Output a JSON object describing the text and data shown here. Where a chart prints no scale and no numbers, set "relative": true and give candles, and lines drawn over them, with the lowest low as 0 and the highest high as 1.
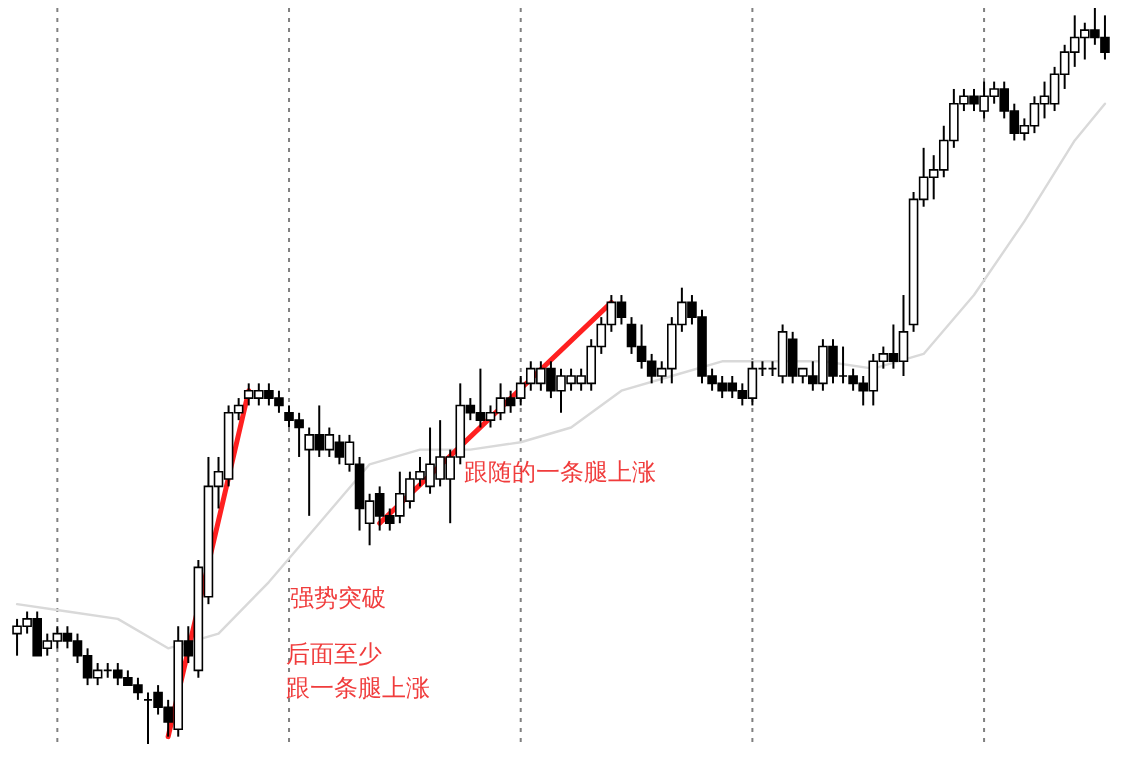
{
  "chart_data": {
    "type": "candlestick",
    "relative": true,
    "categories": [
      null,
      null,
      null,
      null,
      null,
      null,
      null,
      null,
      null,
      null,
      null,
      null,
      null,
      null,
      null,
      null,
      null,
      null,
      null,
      null,
      null,
      null,
      null,
      null,
      null,
      null,
      null,
      null,
      null,
      null,
      null,
      null,
      null,
      null,
      null,
      null,
      null,
      null,
      null,
      null,
      null,
      null,
      null,
      null,
      null,
      null,
      null,
      null,
      null,
      null,
      null,
      null,
      null,
      null,
      null,
      null,
      null,
      null,
      null,
      null,
      null,
      null,
      null,
      null,
      null,
      null,
      null,
      null,
      null,
      null,
      null,
      null,
      null,
      null,
      null,
      null,
      null,
      null,
      null,
      null,
      null,
      null,
      null,
      null,
      null,
      null,
      null,
      null,
      null,
      null,
      null,
      null,
      null,
      null,
      null,
      null,
      null,
      null,
      null,
      null,
      null,
      null,
      null,
      null,
      null,
      null,
      null,
      null,
      null
    ],
    "ohlc": [
      [
        0.15,
        0.17,
        0.12,
        0.16
      ],
      [
        0.16,
        0.18,
        0.15,
        0.17
      ],
      [
        0.17,
        0.18,
        0.12,
        0.12
      ],
      [
        0.13,
        0.15,
        0.12,
        0.14
      ],
      [
        0.14,
        0.16,
        0.13,
        0.15
      ],
      [
        0.15,
        0.16,
        0.13,
        0.14
      ],
      [
        0.14,
        0.15,
        0.11,
        0.12
      ],
      [
        0.12,
        0.13,
        0.08,
        0.09
      ],
      [
        0.09,
        0.11,
        0.08,
        0.1
      ],
      [
        0.1,
        0.11,
        0.09,
        0.1
      ],
      [
        0.1,
        0.11,
        0.08,
        0.09
      ],
      [
        0.09,
        0.1,
        0.08,
        0.08
      ],
      [
        0.08,
        0.09,
        0.06,
        0.07
      ],
      [
        0.06,
        0.07,
        0,
        0.06
      ],
      [
        0.07,
        0.08,
        0.04,
        0.05
      ],
      [
        0.05,
        0.06,
        0.01,
        0.03
      ],
      [
        0.02,
        0.16,
        0.01,
        0.14
      ],
      [
        0.14,
        0.16,
        0.11,
        0.12
      ],
      [
        0.1,
        0.25,
        0.09,
        0.24
      ],
      [
        0.2,
        0.39,
        0.19,
        0.35
      ],
      [
        0.35,
        0.39,
        0.32,
        0.37
      ],
      [
        0.36,
        0.46,
        0.35,
        0.45
      ],
      [
        0.45,
        0.47,
        0.44,
        0.46
      ],
      [
        0.47,
        0.49,
        0.46,
        0.48
      ],
      [
        0.47,
        0.49,
        0.46,
        0.48
      ],
      [
        0.48,
        0.49,
        0.46,
        0.47
      ],
      [
        0.47,
        0.48,
        0.45,
        0.46
      ],
      [
        0.45,
        0.46,
        0.43,
        0.44
      ],
      [
        0.44,
        0.45,
        0.39,
        0.43
      ],
      [
        0.4,
        0.43,
        0.31,
        0.42
      ],
      [
        0.42,
        0.46,
        0.39,
        0.4
      ],
      [
        0.4,
        0.43,
        0.39,
        0.42
      ],
      [
        0.41,
        0.42,
        0.38,
        0.39
      ],
      [
        0.38,
        0.42,
        0.37,
        0.41
      ],
      [
        0.38,
        0.39,
        0.29,
        0.32
      ],
      [
        0.3,
        0.34,
        0.27,
        0.33
      ],
      [
        0.34,
        0.35,
        0.29,
        0.31
      ],
      [
        0.31,
        0.32,
        0.29,
        0.3
      ],
      [
        0.31,
        0.37,
        0.3,
        0.34
      ],
      [
        0.33,
        0.37,
        0.32,
        0.36
      ],
      [
        0.36,
        0.39,
        0.35,
        0.37
      ],
      [
        0.35,
        0.43,
        0.34,
        0.38
      ],
      [
        0.36,
        0.44,
        0.35,
        0.39
      ],
      [
        0.36,
        0.4,
        0.3,
        0.39
      ],
      [
        0.39,
        0.49,
        0.38,
        0.46
      ],
      [
        0.46,
        0.47,
        0.44,
        0.45
      ],
      [
        0.45,
        0.51,
        0.43,
        0.44
      ],
      [
        0.44,
        0.46,
        0.43,
        0.45
      ],
      [
        0.45,
        0.49,
        0.44,
        0.47
      ],
      [
        0.47,
        0.48,
        0.45,
        0.46
      ],
      [
        0.47,
        0.5,
        0.46,
        0.49
      ],
      [
        0.49,
        0.52,
        0.48,
        0.51
      ],
      [
        0.49,
        0.52,
        0.48,
        0.51
      ],
      [
        0.51,
        0.52,
        0.47,
        0.48
      ],
      [
        0.48,
        0.51,
        0.45,
        0.5
      ],
      [
        0.49,
        0.51,
        0.48,
        0.5
      ],
      [
        0.49,
        0.51,
        0.48,
        0.5
      ],
      [
        0.49,
        0.55,
        0.48,
        0.54
      ],
      [
        0.54,
        0.58,
        0.53,
        0.57
      ],
      [
        0.57,
        0.61,
        0.56,
        0.6
      ],
      [
        0.6,
        0.61,
        0.57,
        0.58
      ],
      [
        0.57,
        0.58,
        0.53,
        0.54
      ],
      [
        0.54,
        0.57,
        0.51,
        0.52
      ],
      [
        0.52,
        0.53,
        0.49,
        0.5
      ],
      [
        0.5,
        0.52,
        0.49,
        0.51
      ],
      [
        0.51,
        0.58,
        0.49,
        0.57
      ],
      [
        0.57,
        0.62,
        0.56,
        0.6
      ],
      [
        0.6,
        0.61,
        0.57,
        0.58
      ],
      [
        0.58,
        0.59,
        0.49,
        0.5
      ],
      [
        0.5,
        0.51,
        0.48,
        0.49
      ],
      [
        0.49,
        0.5,
        0.47,
        0.48
      ],
      [
        0.49,
        0.5,
        0.47,
        0.48
      ],
      [
        0.48,
        0.49,
        0.46,
        0.47
      ],
      [
        0.47,
        0.52,
        0.46,
        0.51
      ],
      [
        0.51,
        0.52,
        0.5,
        0.51
      ],
      [
        0.51,
        0.52,
        0.5,
        0.51
      ],
      [
        0.5,
        0.57,
        0.49,
        0.56
      ],
      [
        0.55,
        0.56,
        0.49,
        0.5
      ],
      [
        0.5,
        0.51,
        0.49,
        0.51
      ],
      [
        0.5,
        0.52,
        0.48,
        0.49
      ],
      [
        0.49,
        0.55,
        0.48,
        0.54
      ],
      [
        0.54,
        0.55,
        0.49,
        0.5
      ],
      [
        0.5,
        0.54,
        0.49,
        0.5
      ],
      [
        0.5,
        0.51,
        0.48,
        0.49
      ],
      [
        0.49,
        0.5,
        0.46,
        0.48
      ],
      [
        0.48,
        0.53,
        0.46,
        0.52
      ],
      [
        0.52,
        0.54,
        0.51,
        0.53
      ],
      [
        0.53,
        0.57,
        0.51,
        0.52
      ],
      [
        0.52,
        0.61,
        0.5,
        0.56
      ],
      [
        0.57,
        0.75,
        0.56,
        0.74
      ],
      [
        0.74,
        0.81,
        0.73,
        0.77
      ],
      [
        0.77,
        0.8,
        0.74,
        0.78
      ],
      [
        0.78,
        0.84,
        0.77,
        0.82
      ],
      [
        0.82,
        0.89,
        0.81,
        0.87
      ],
      [
        0.87,
        0.89,
        0.86,
        0.88
      ],
      [
        0.88,
        0.89,
        0.86,
        0.87
      ],
      [
        0.86,
        0.9,
        0.85,
        0.88
      ],
      [
        0.88,
        0.9,
        0.87,
        0.89
      ],
      [
        0.89,
        0.9,
        0.85,
        0.86
      ],
      [
        0.86,
        0.87,
        0.82,
        0.83
      ],
      [
        0.83,
        0.85,
        0.82,
        0.84
      ],
      [
        0.84,
        0.88,
        0.83,
        0.87
      ],
      [
        0.87,
        0.9,
        0.85,
        0.88
      ],
      [
        0.87,
        0.92,
        0.86,
        0.91
      ],
      [
        0.91,
        0.95,
        0.89,
        0.94
      ],
      [
        0.94,
        0.99,
        0.92,
        0.96
      ],
      [
        0.96,
        0.98,
        0.93,
        0.97
      ],
      [
        0.97,
        1,
        0.95,
        0.96
      ],
      [
        0.96,
        0.99,
        0.93,
        0.94
      ]
    ],
    "series": [
      {
        "type": "line",
        "color": "#d9d9d9",
        "values": [
          0.19,
          null,
          null,
          null,
          null,
          0.18,
          null,
          null,
          null,
          null,
          0.17,
          null,
          null,
          null,
          null,
          0.13,
          null,
          null,
          null,
          null,
          0.15,
          null,
          null,
          null,
          null,
          0.22,
          null,
          null,
          null,
          null,
          0.3,
          null,
          null,
          null,
          null,
          0.38,
          null,
          null,
          null,
          null,
          0.4,
          null,
          null,
          null,
          null,
          0.4,
          null,
          null,
          null,
          null,
          0.41,
          null,
          null,
          null,
          null,
          0.43,
          null,
          null,
          null,
          null,
          0.48,
          null,
          null,
          null,
          null,
          0.5,
          null,
          null,
          null,
          null,
          0.52,
          null,
          null,
          null,
          null,
          0.52,
          null,
          null,
          null,
          null,
          0.52,
          null,
          null,
          null,
          null,
          0.51,
          null,
          null,
          null,
          null,
          0.53,
          null,
          null,
          null,
          null,
          0.61,
          null,
          null,
          null,
          null,
          0.71,
          null,
          null,
          null,
          null,
          0.82,
          null,
          null,
          0.87
        ]
      },
      {
        "type": "line",
        "color": "#ff2020",
        "values": [
          null,
          null,
          null,
          null,
          null,
          null,
          null,
          null,
          null,
          null,
          null,
          null,
          null,
          null,
          null,
          0.01,
          null,
          null,
          null,
          null,
          null,
          null,
          null,
          0.48,
          null,
          null,
          null,
          null,
          null,
          null,
          null,
          null,
          null,
          null,
          null,
          null,
          null,
          null,
          null,
          null,
          null,
          null,
          null,
          null,
          null,
          null,
          null,
          null,
          null,
          null,
          null,
          null,
          null,
          null,
          null,
          null,
          null,
          null,
          null,
          null,
          null,
          null,
          null,
          null,
          null,
          null,
          null,
          null,
          null,
          null,
          null,
          null,
          null,
          null,
          null,
          null,
          null,
          null,
          null,
          null,
          null,
          null,
          null,
          null,
          null,
          null,
          null,
          null,
          null,
          null,
          null,
          null,
          null,
          null,
          null,
          null,
          null,
          null,
          null,
          null,
          null,
          null,
          null,
          null,
          null,
          null,
          null,
          null,
          null
        ]
      },
      {
        "type": "line",
        "color": "#ff2020",
        "values": [
          null,
          null,
          null,
          null,
          null,
          null,
          null,
          null,
          null,
          null,
          null,
          null,
          null,
          null,
          null,
          null,
          null,
          null,
          null,
          null,
          null,
          null,
          null,
          null,
          null,
          null,
          null,
          null,
          null,
          null,
          null,
          null,
          null,
          null,
          null,
          null,
          0.3,
          null,
          null,
          null,
          null,
          null,
          null,
          null,
          null,
          null,
          null,
          null,
          null,
          null,
          null,
          null,
          null,
          null,
          null,
          null,
          null,
          null,
          null,
          0.6,
          null,
          null,
          null,
          null,
          null,
          null,
          null,
          null,
          null,
          null,
          null,
          null,
          null,
          null,
          null,
          null,
          null,
          null,
          null,
          null,
          null,
          null,
          null,
          null,
          null,
          null,
          null,
          null,
          null,
          null,
          null,
          null,
          null,
          null,
          null,
          null,
          null,
          null,
          null,
          null,
          null,
          null,
          null,
          null,
          null,
          null,
          null,
          null,
          null
        ]
      }
    ],
    "annotations": [
      "强势突破",
      "后面至少",
      "跟一条腿上涨",
      "跟随的一条腿上涨"
    ],
    "grid": "x"
  }
}
